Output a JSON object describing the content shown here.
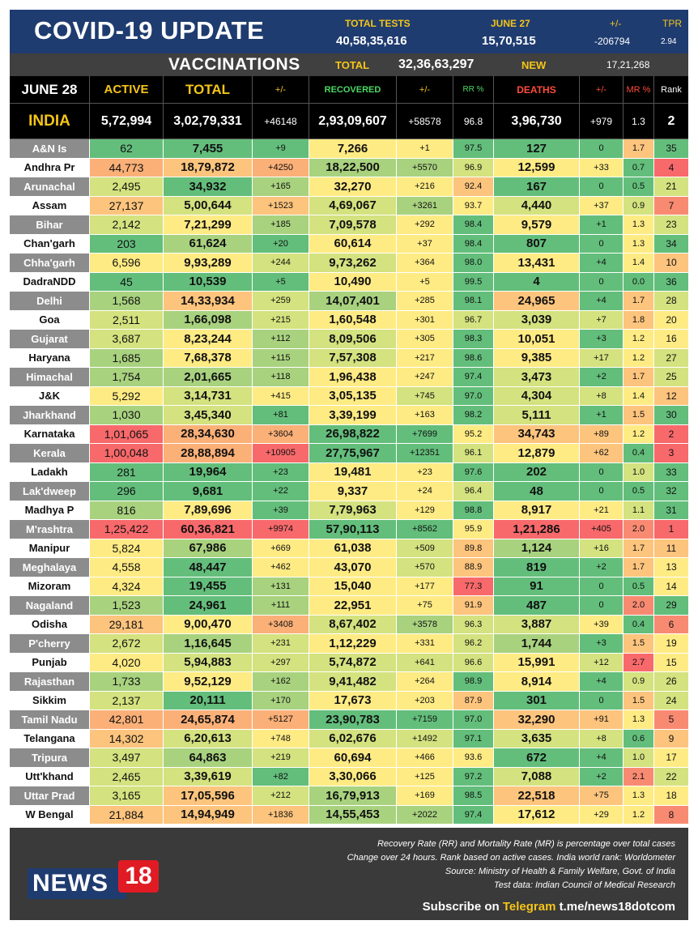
{
  "header": {
    "title": "COVID-19 UPDATE",
    "total_tests_label": "TOTAL TESTS",
    "total_tests": "40,58,35,616",
    "date_label": "JUNE 27",
    "date_tests": "15,70,515",
    "change_label": "+/-",
    "change_value": "-206794",
    "tpr_label": "TPR",
    "tpr_value": "2.94"
  },
  "vaccinations": {
    "title": "VACCINATIONS",
    "total_label": "TOTAL",
    "total": "32,36,63,297",
    "new_label": "NEW",
    "new": "17,21,268"
  },
  "columns": [
    "JUNE 28",
    "ACTIVE",
    "TOTAL",
    "+/-",
    "RECOVERED",
    "+/-",
    "RR %",
    "DEATHS",
    "+/-",
    "MR %",
    "Rank"
  ],
  "india": [
    "INDIA",
    "5,72,994",
    "3,02,79,331",
    "+46148",
    "2,93,09,607",
    "+58578",
    "96.8",
    "3,96,730",
    "+979",
    "1.3",
    "2"
  ],
  "rows": [
    [
      "A&N Is",
      "62",
      "7,455",
      "+9",
      "7,266",
      "+1",
      "97.5",
      "127",
      "0",
      "1.7",
      "35"
    ],
    [
      "Andhra Pr",
      "44,773",
      "18,79,872",
      "+4250",
      "18,22,500",
      "+5570",
      "96.9",
      "12,599",
      "+33",
      "0.7",
      "4"
    ],
    [
      "Arunachal",
      "2,495",
      "34,932",
      "+165",
      "32,270",
      "+216",
      "92.4",
      "167",
      "0",
      "0.5",
      "21"
    ],
    [
      "Assam",
      "27,137",
      "5,00,644",
      "+1523",
      "4,69,067",
      "+3261",
      "93.7",
      "4,440",
      "+37",
      "0.9",
      "7"
    ],
    [
      "Bihar",
      "2,142",
      "7,21,299",
      "+185",
      "7,09,578",
      "+292",
      "98.4",
      "9,579",
      "+1",
      "1.3",
      "23"
    ],
    [
      "Chan'garh",
      "203",
      "61,624",
      "+20",
      "60,614",
      "+37",
      "98.4",
      "807",
      "0",
      "1.3",
      "34"
    ],
    [
      "Chha'garh",
      "6,596",
      "9,93,289",
      "+244",
      "9,73,262",
      "+364",
      "98.0",
      "13,431",
      "+4",
      "1.4",
      "10"
    ],
    [
      "DadraNDD",
      "45",
      "10,539",
      "+5",
      "10,490",
      "+5",
      "99.5",
      "4",
      "0",
      "0.0",
      "36"
    ],
    [
      "Delhi",
      "1,568",
      "14,33,934",
      "+259",
      "14,07,401",
      "+285",
      "98.1",
      "24,965",
      "+4",
      "1.7",
      "28"
    ],
    [
      "Goa",
      "2,511",
      "1,66,098",
      "+215",
      "1,60,548",
      "+301",
      "96.7",
      "3,039",
      "+7",
      "1.8",
      "20"
    ],
    [
      "Gujarat",
      "3,687",
      "8,23,244",
      "+112",
      "8,09,506",
      "+305",
      "98.3",
      "10,051",
      "+3",
      "1.2",
      "16"
    ],
    [
      "Haryana",
      "1,685",
      "7,68,378",
      "+115",
      "7,57,308",
      "+217",
      "98.6",
      "9,385",
      "+17",
      "1.2",
      "27"
    ],
    [
      "Himachal",
      "1,754",
      "2,01,665",
      "+118",
      "1,96,438",
      "+247",
      "97.4",
      "3,473",
      "+2",
      "1.7",
      "25"
    ],
    [
      "J&K",
      "5,292",
      "3,14,731",
      "+415",
      "3,05,135",
      "+745",
      "97.0",
      "4,304",
      "+8",
      "1.4",
      "12"
    ],
    [
      "Jharkhand",
      "1,030",
      "3,45,340",
      "+81",
      "3,39,199",
      "+163",
      "98.2",
      "5,111",
      "+1",
      "1.5",
      "30"
    ],
    [
      "Karnataka",
      "1,01,065",
      "28,34,630",
      "+3604",
      "26,98,822",
      "+7699",
      "95.2",
      "34,743",
      "+89",
      "1.2",
      "2"
    ],
    [
      "Kerala",
      "1,00,048",
      "28,88,894",
      "+10905",
      "27,75,967",
      "+12351",
      "96.1",
      "12,879",
      "+62",
      "0.4",
      "3"
    ],
    [
      "Ladakh",
      "281",
      "19,964",
      "+23",
      "19,481",
      "+23",
      "97.6",
      "202",
      "0",
      "1.0",
      "33"
    ],
    [
      "Lak'dweep",
      "296",
      "9,681",
      "+22",
      "9,337",
      "+24",
      "96.4",
      "48",
      "0",
      "0.5",
      "32"
    ],
    [
      "Madhya P",
      "816",
      "7,89,696",
      "+39",
      "7,79,963",
      "+129",
      "98.8",
      "8,917",
      "+21",
      "1.1",
      "31"
    ],
    [
      "M'rashtra",
      "1,25,422",
      "60,36,821",
      "+9974",
      "57,90,113",
      "+8562",
      "95.9",
      "1,21,286",
      "+405",
      "2.0",
      "1"
    ],
    [
      "Manipur",
      "5,824",
      "67,986",
      "+669",
      "61,038",
      "+509",
      "89.8",
      "1,124",
      "+16",
      "1.7",
      "11"
    ],
    [
      "Meghalaya",
      "4,558",
      "48,447",
      "+462",
      "43,070",
      "+570",
      "88.9",
      "819",
      "+2",
      "1.7",
      "13"
    ],
    [
      "Mizoram",
      "4,324",
      "19,455",
      "+131",
      "15,040",
      "+177",
      "77.3",
      "91",
      "0",
      "0.5",
      "14"
    ],
    [
      "Nagaland",
      "1,523",
      "24,961",
      "+111",
      "22,951",
      "+75",
      "91.9",
      "487",
      "0",
      "2.0",
      "29"
    ],
    [
      "Odisha",
      "29,181",
      "9,00,470",
      "+3408",
      "8,67,402",
      "+3578",
      "96.3",
      "3,887",
      "+39",
      "0.4",
      "6"
    ],
    [
      "P'cherry",
      "2,672",
      "1,16,645",
      "+231",
      "1,12,229",
      "+331",
      "96.2",
      "1,744",
      "+3",
      "1.5",
      "19"
    ],
    [
      "Punjab",
      "4,020",
      "5,94,883",
      "+297",
      "5,74,872",
      "+641",
      "96.6",
      "15,991",
      "+12",
      "2.7",
      "15"
    ],
    [
      "Rajasthan",
      "1,733",
      "9,52,129",
      "+162",
      "9,41,482",
      "+264",
      "98.9",
      "8,914",
      "+4",
      "0.9",
      "26"
    ],
    [
      "Sikkim",
      "2,137",
      "20,111",
      "+170",
      "17,673",
      "+203",
      "87.9",
      "301",
      "0",
      "1.5",
      "24"
    ],
    [
      "Tamil Nadu",
      "42,801",
      "24,65,874",
      "+5127",
      "23,90,783",
      "+7159",
      "97.0",
      "32,290",
      "+91",
      "1.3",
      "5"
    ],
    [
      "Telangana",
      "14,302",
      "6,20,613",
      "+748",
      "6,02,676",
      "+1492",
      "97.1",
      "3,635",
      "+8",
      "0.6",
      "9"
    ],
    [
      "Tripura",
      "3,497",
      "64,863",
      "+219",
      "60,694",
      "+466",
      "93.6",
      "672",
      "+4",
      "1.0",
      "17"
    ],
    [
      "Utt'khand",
      "2,465",
      "3,39,619",
      "+82",
      "3,30,066",
      "+125",
      "97.2",
      "7,088",
      "+2",
      "2.1",
      "22"
    ],
    [
      "Uttar Prad",
      "3,165",
      "17,05,596",
      "+212",
      "16,79,913",
      "+169",
      "98.5",
      "22,518",
      "+75",
      "1.3",
      "18"
    ],
    [
      "W Bengal",
      "21,884",
      "14,94,949",
      "+1836",
      "14,55,453",
      "+2022",
      "97.4",
      "17,612",
      "+29",
      "1.2",
      "8"
    ]
  ],
  "palette": {
    "green": "#63be7b",
    "lightgreen": "#a9d27f",
    "yellowgreen": "#d4e27f",
    "yellow": "#ffeb84",
    "orange": "#fdc47d",
    "lightorange": "#fbb078",
    "red": "#f8696b",
    "lightred": "#f98a72",
    "white": "#ffffff"
  },
  "footer": {
    "notes": [
      "Recovery Rate (RR) and Mortality Rate (MR) is percentage over total cases",
      "Change over 24 hours. Rank based on active cases. India world rank: Worldometer",
      "Source: Ministry of Health & Family Welfare, Govt. of India",
      "Test data: Indian Council of Medical Research"
    ],
    "logo_news": "NEWS",
    "logo_18": "18",
    "subscribe_prefix": "Subscribe on",
    "subscribe_app": "Telegram",
    "subscribe_link": "t.me/news18dotcom"
  }
}
